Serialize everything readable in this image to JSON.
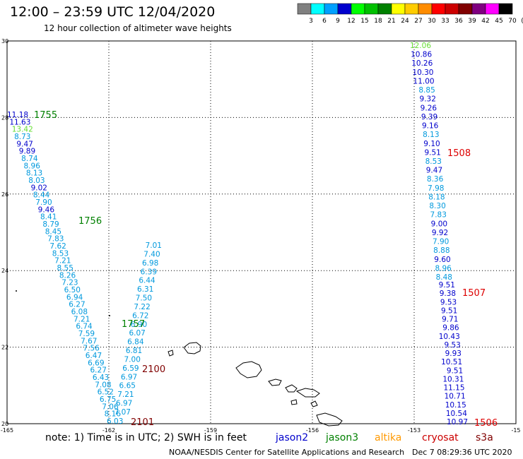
{
  "title": "12:00 – 23:59 UTC 12/04/2020",
  "subtitle": "12 hour collection of altimeter wave heights",
  "colorbar": {
    "labels": [
      "3",
      "6",
      "9",
      "12",
      "15",
      "18",
      "21",
      "24",
      "27",
      "30",
      "33",
      "36",
      "39",
      "42",
      "45",
      "70",
      "(ft)"
    ],
    "colors": [
      "#808080",
      "#00ffff",
      "#00a0ff",
      "#0000cd",
      "#00ff00",
      "#00c000",
      "#008000",
      "#ffff00",
      "#ffcc00",
      "#ff8c00",
      "#ff0000",
      "#cc0000",
      "#800000",
      "#800080",
      "#ff00ff",
      "#000000"
    ]
  },
  "note": "note: 1) Time is in UTC; 2) SWH is in feet",
  "satellites": [
    {
      "name": "jason2",
      "color": "#0000cc"
    },
    {
      "name": "jason3",
      "color": "#008000"
    },
    {
      "name": "altika",
      "color": "#ff9900"
    },
    {
      "name": "cryosat",
      "color": "#cc0000"
    },
    {
      "name": "s3a",
      "color": "#800000"
    }
  ],
  "footer_credit": "NOAA/NESDIS Center for Satellite Applications and Research",
  "footer_date": "Dec  7 08:29:36 UTC 2020",
  "axes": {
    "lon_labels": [
      "-165",
      "-162",
      "-159",
      "-156",
      "-153",
      "-15"
    ],
    "lat_labels": [
      "30",
      "28",
      "26",
      "24",
      "22",
      "20"
    ]
  },
  "tracks": [
    {
      "time": "1755",
      "time_color": "#008000",
      "labels": [
        {
          "t": "11.18",
          "c": "#0000cc"
        },
        {
          "t": "11.63",
          "c": "#0000cc"
        },
        {
          "t": "13.42",
          "c": "#66dd33"
        },
        {
          "t": "8.73",
          "c": "#0099dd"
        },
        {
          "t": "9.47",
          "c": "#0000cc"
        },
        {
          "t": "9.89",
          "c": "#0000cc"
        },
        {
          "t": "8.74",
          "c": "#0099dd"
        },
        {
          "t": "8.96",
          "c": "#0099dd"
        },
        {
          "t": "8.13",
          "c": "#0099dd"
        },
        {
          "t": "8.03",
          "c": "#0099dd"
        },
        {
          "t": "9.02",
          "c": "#0000cc"
        },
        {
          "t": "8.44",
          "c": "#0099dd"
        },
        {
          "t": "7.90",
          "c": "#0099dd"
        },
        {
          "t": "9.46",
          "c": "#0000cc"
        },
        {
          "t": "8.41",
          "c": "#0099dd"
        },
        {
          "t": "8.79",
          "c": "#0099dd"
        },
        {
          "t": "8.45",
          "c": "#0099dd"
        },
        {
          "t": "7.83",
          "c": "#0099dd"
        },
        {
          "t": "7.62",
          "c": "#0099dd"
        },
        {
          "t": "8.53",
          "c": "#0099dd"
        },
        {
          "t": "7.21",
          "c": "#0099dd"
        },
        {
          "t": "8.55",
          "c": "#0099dd"
        },
        {
          "t": "8.26",
          "c": "#0099dd"
        },
        {
          "t": "7.23",
          "c": "#0099dd"
        },
        {
          "t": "6.50",
          "c": "#0099dd"
        },
        {
          "t": "6.94",
          "c": "#0099dd"
        },
        {
          "t": "6.27",
          "c": "#0099dd"
        },
        {
          "t": "6.08",
          "c": "#0099dd"
        },
        {
          "t": "7.21",
          "c": "#0099dd"
        },
        {
          "t": "6.74",
          "c": "#0099dd"
        },
        {
          "t": "7.59",
          "c": "#0099dd"
        },
        {
          "t": "7.67",
          "c": "#0099dd"
        },
        {
          "t": "7.56",
          "c": "#0099dd"
        },
        {
          "t": "6.47",
          "c": "#0099dd"
        },
        {
          "t": "6.69",
          "c": "#0099dd"
        },
        {
          "t": "6.27",
          "c": "#0099dd"
        },
        {
          "t": "6.43",
          "c": "#0099dd"
        },
        {
          "t": "7.08",
          "c": "#0099dd"
        },
        {
          "t": "6.52",
          "c": "#0099dd"
        },
        {
          "t": "6.75",
          "c": "#0099dd"
        },
        {
          "t": "7.06",
          "c": "#0099dd"
        },
        {
          "t": "8.16",
          "c": "#0099dd"
        },
        {
          "t": "6.03",
          "c": "#0099dd"
        }
      ]
    },
    {
      "time": "1756",
      "time_color": "#008000"
    },
    {
      "time": "1757",
      "time_color": "#008000",
      "labels": [
        {
          "t": "7.01",
          "c": "#0099dd"
        },
        {
          "t": "7.40",
          "c": "#0099dd"
        },
        {
          "t": "6.98",
          "c": "#0099dd"
        },
        {
          "t": "6.39",
          "c": "#0099dd"
        },
        {
          "t": "6.44",
          "c": "#0099dd"
        },
        {
          "t": "6.31",
          "c": "#0099dd"
        },
        {
          "t": "7.50",
          "c": "#0099dd"
        },
        {
          "t": "7.22",
          "c": "#0099dd"
        },
        {
          "t": "6.72",
          "c": "#0099dd"
        },
        {
          "t": "6.90",
          "c": "#0099dd"
        },
        {
          "t": "6.07",
          "c": "#0099dd"
        },
        {
          "t": "6.84",
          "c": "#0099dd"
        },
        {
          "t": "6.81",
          "c": "#0099dd"
        },
        {
          "t": "7.00",
          "c": "#0099dd"
        },
        {
          "t": "6.59",
          "c": "#0099dd"
        },
        {
          "t": "6.97",
          "c": "#0099dd"
        },
        {
          "t": "6.65",
          "c": "#0099dd"
        },
        {
          "t": "7.21",
          "c": "#0099dd"
        },
        {
          "t": "6.97",
          "c": "#0099dd"
        },
        {
          "t": "7.07",
          "c": "#0099dd"
        }
      ]
    },
    {
      "time": "2100",
      "time_color": "#800000"
    },
    {
      "time": "2101",
      "time_color": "#800000"
    },
    {
      "time": "1508",
      "time_color": "#dd0000",
      "labels": [
        {
          "t": "12.06",
          "c": "#66dd33"
        },
        {
          "t": "10.86",
          "c": "#0000cc"
        },
        {
          "t": "10.26",
          "c": "#0000cc"
        },
        {
          "t": "10.30",
          "c": "#0000cc"
        },
        {
          "t": "11.00",
          "c": "#0000cc"
        },
        {
          "t": "8.85",
          "c": "#0099dd"
        },
        {
          "t": "9.32",
          "c": "#0000cc"
        },
        {
          "t": "9.26",
          "c": "#0000cc"
        },
        {
          "t": "9.39",
          "c": "#0000cc"
        },
        {
          "t": "9.16",
          "c": "#0000cc"
        },
        {
          "t": "8.13",
          "c": "#0099dd"
        },
        {
          "t": "9.10",
          "c": "#0000cc"
        },
        {
          "t": "9.51",
          "c": "#0000cc"
        },
        {
          "t": "8.53",
          "c": "#0099dd"
        },
        {
          "t": "9.47",
          "c": "#0000cc"
        },
        {
          "t": "8.36",
          "c": "#0099dd"
        },
        {
          "t": "7.98",
          "c": "#0099dd"
        },
        {
          "t": "8.18",
          "c": "#0099dd"
        },
        {
          "t": "8.30",
          "c": "#0099dd"
        },
        {
          "t": "7.83",
          "c": "#0099dd"
        },
        {
          "t": "9.00",
          "c": "#0000cc"
        },
        {
          "t": "9.92",
          "c": "#0000cc"
        },
        {
          "t": "7.90",
          "c": "#0099dd"
        },
        {
          "t": "8.88",
          "c": "#0099dd"
        },
        {
          "t": "9.60",
          "c": "#0000cc"
        },
        {
          "t": "8.96",
          "c": "#0099dd"
        },
        {
          "t": "8.48",
          "c": "#0099dd"
        }
      ]
    },
    {
      "time": "1507",
      "time_color": "#dd0000",
      "labels": [
        {
          "t": "9.51",
          "c": "#0000cc"
        },
        {
          "t": "9.38",
          "c": "#0000cc"
        },
        {
          "t": "9.53",
          "c": "#0000cc"
        },
        {
          "t": "9.51",
          "c": "#0000cc"
        },
        {
          "t": "9.71",
          "c": "#0000cc"
        },
        {
          "t": "9.86",
          "c": "#0000cc"
        },
        {
          "t": "10.43",
          "c": "#0000cc"
        },
        {
          "t": "9.53",
          "c": "#0000cc"
        },
        {
          "t": "9.93",
          "c": "#0000cc"
        },
        {
          "t": "10.51",
          "c": "#0000cc"
        },
        {
          "t": "9.51",
          "c": "#0000cc"
        },
        {
          "t": "10.31",
          "c": "#0000cc"
        },
        {
          "t": "11.15",
          "c": "#0000cc"
        },
        {
          "t": "10.71",
          "c": "#0000cc"
        },
        {
          "t": "10.15",
          "c": "#0000cc"
        },
        {
          "t": "10.54",
          "c": "#0000cc"
        },
        {
          "t": "10.97",
          "c": "#0000cc"
        }
      ]
    },
    {
      "time": "1506",
      "time_color": "#dd0000"
    }
  ]
}
